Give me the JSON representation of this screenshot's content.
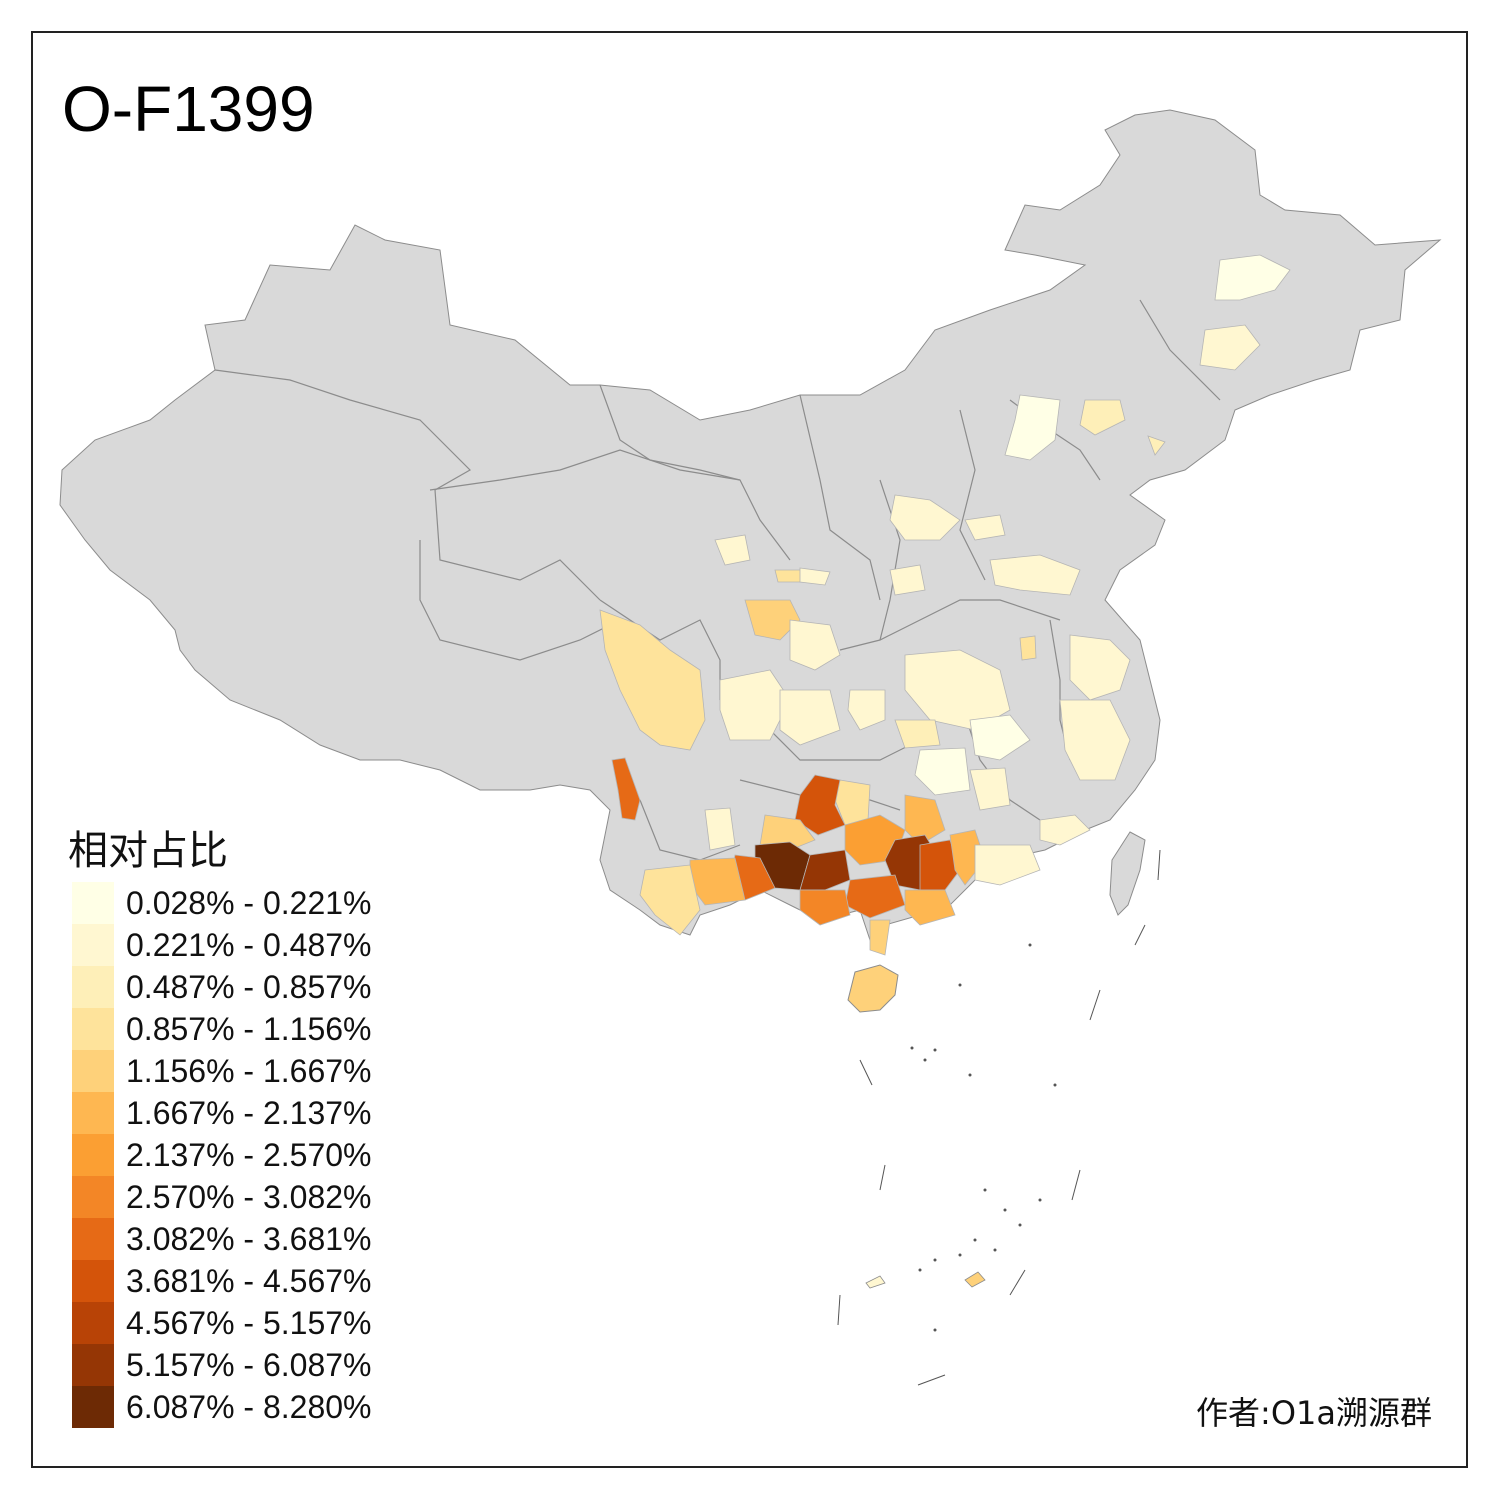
{
  "title": "O-F1399",
  "legend": {
    "title": "相对占比",
    "items": [
      {
        "label": "0.028% - 0.221%",
        "color": "#FFFFE6"
      },
      {
        "label": "0.221% - 0.487%",
        "color": "#FFF7D1"
      },
      {
        "label": "0.487% - 0.857%",
        "color": "#FEEFB8"
      },
      {
        "label": "0.857% - 1.156%",
        "color": "#FEE39B"
      },
      {
        "label": "1.156% - 1.667%",
        "color": "#FED17A"
      },
      {
        "label": "1.667% - 2.137%",
        "color": "#FEB751"
      },
      {
        "label": "2.137% - 2.570%",
        "color": "#FB9F33"
      },
      {
        "label": "2.570% - 3.082%",
        "color": "#F38626"
      },
      {
        "label": "3.082% - 3.681%",
        "color": "#E66A16"
      },
      {
        "label": "3.681% - 4.567%",
        "color": "#D4540A"
      },
      {
        "label": "4.567% - 5.157%",
        "color": "#B84306"
      },
      {
        "label": "5.157% - 6.087%",
        "color": "#953605"
      },
      {
        "label": "6.087% - 8.280%",
        "color": "#6D2A05"
      }
    ]
  },
  "author": "作者:O1a溯源群",
  "colors": {
    "base_region": "#D9D9D9",
    "border": "#8C8C8C"
  }
}
